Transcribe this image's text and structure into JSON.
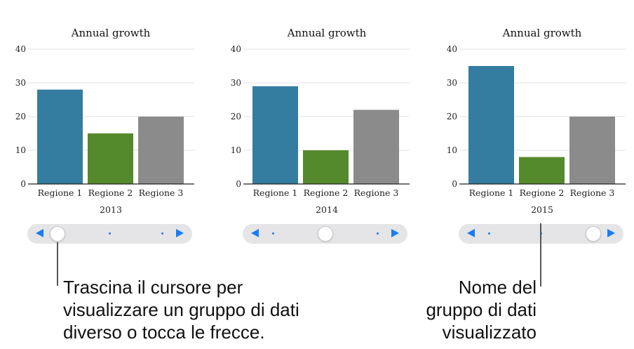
{
  "chart_data": [
    {
      "type": "bar",
      "title": "Annual growth",
      "xlabel": "2013",
      "categories": [
        "Regione 1",
        "Regione 2",
        "Regione 3"
      ],
      "values": [
        28,
        15,
        20
      ],
      "ylim": [
        0,
        40
      ],
      "yticks": [
        0,
        10,
        20,
        30,
        40
      ],
      "colors": [
        "#357ca1",
        "#558a2c",
        "#8b8b8b"
      ],
      "grid": true,
      "selected_index": 0
    },
    {
      "type": "bar",
      "title": "Annual growth",
      "xlabel": "2014",
      "categories": [
        "Regione 1",
        "Regione 2",
        "Regione 3"
      ],
      "values": [
        29,
        10,
        22
      ],
      "ylim": [
        0,
        40
      ],
      "yticks": [
        0,
        10,
        20,
        30,
        40
      ],
      "colors": [
        "#357ca1",
        "#558a2c",
        "#8b8b8b"
      ],
      "grid": true,
      "selected_index": 1
    },
    {
      "type": "bar",
      "title": "Annual growth",
      "xlabel": "2015",
      "categories": [
        "Regione 1",
        "Regione 2",
        "Regione 3"
      ],
      "values": [
        35,
        8,
        20
      ],
      "ylim": [
        0,
        40
      ],
      "yticks": [
        0,
        10,
        20,
        30,
        40
      ],
      "colors": [
        "#357ca1",
        "#558a2c",
        "#8b8b8b"
      ],
      "grid": true,
      "selected_index": 2
    }
  ],
  "slider": {
    "group_count": 3,
    "left_arrow_icon": "triangle-left-icon",
    "right_arrow_icon": "triangle-right-icon",
    "accent_color": "#1a7cf5"
  },
  "callouts": {
    "slider_hint": [
      "Trascina il cursore per",
      "visualizzare un gruppo di dati",
      "diverso o tocca le frecce."
    ],
    "group_name_hint": [
      "Nome del",
      "gruppo di dati",
      "visualizzato"
    ]
  }
}
